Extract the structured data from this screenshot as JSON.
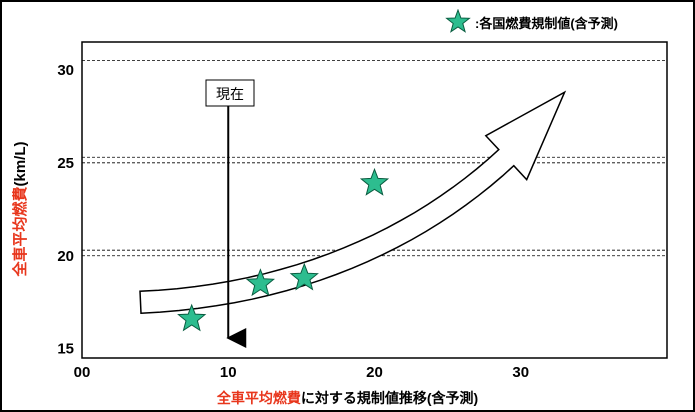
{
  "legend": {
    "icon": "star-icon",
    "label": ":各国燃費規制値(含予測)"
  },
  "axes": {
    "ylabel_highlight": "全車平均燃費",
    "ylabel_rest": "(km/L)",
    "xlabel_highlight": "全車平均燃費",
    "xlabel_rest": "に対する規制値推移(含予測)"
  },
  "callout": {
    "label": "現在"
  },
  "colors": {
    "accent": "#e8361c",
    "star_fill": "#2dbd8f",
    "star_stroke": "#0a5c40"
  },
  "chart_data": {
    "type": "scatter",
    "x_tick_labels": [
      "00",
      "10",
      "20",
      "30"
    ],
    "y_tick_labels": [
      "15",
      "20",
      "25",
      "30"
    ],
    "xlim": [
      0,
      40
    ],
    "ylim": [
      14.5,
      31.5
    ],
    "dashed_reference_lines_y": [
      30.5,
      25.3,
      25.0,
      20.3,
      20.0
    ],
    "current_marker_x": 10,
    "points": [
      {
        "x": 7.5,
        "y": 16.6
      },
      {
        "x": 12.2,
        "y": 18.5
      },
      {
        "x": 15.2,
        "y": 18.8
      },
      {
        "x": 20.0,
        "y": 23.9
      }
    ],
    "trend_arrow": {
      "from": {
        "x": 4,
        "y": 17.5
      },
      "to": {
        "x": 33,
        "y": 28.8
      }
    }
  }
}
